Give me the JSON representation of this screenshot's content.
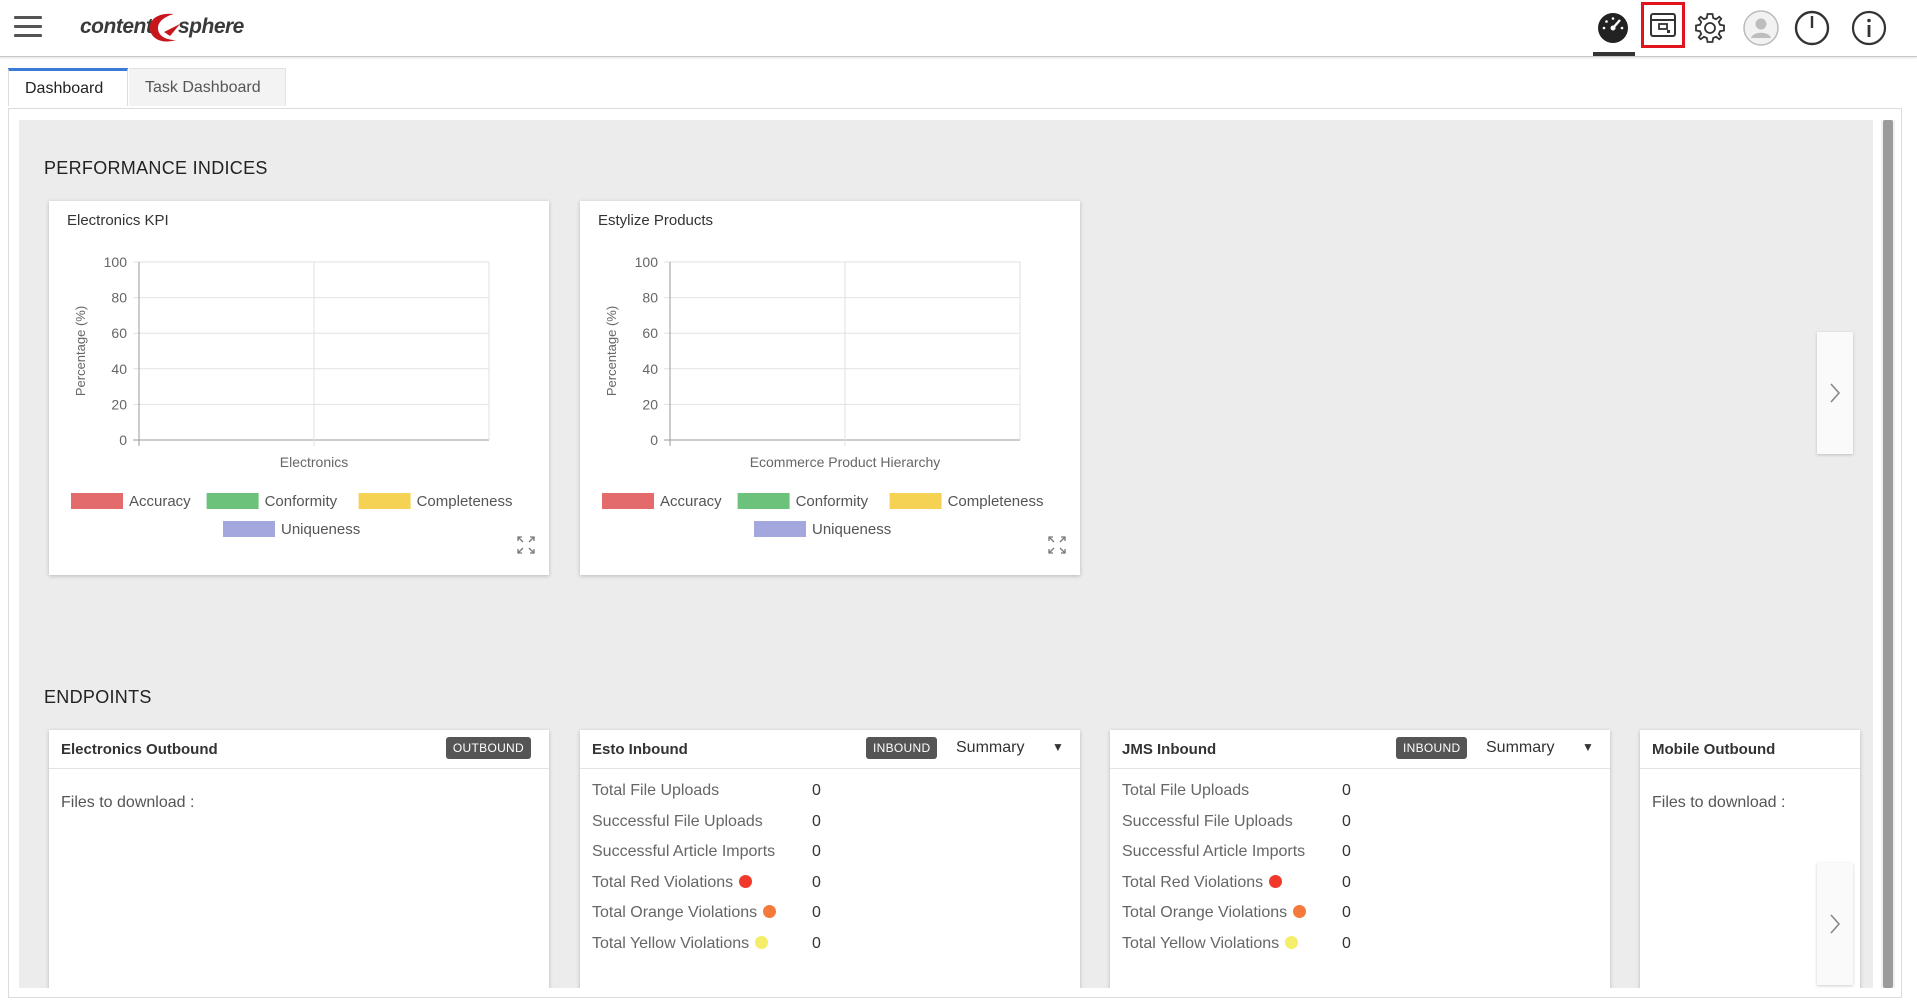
{
  "app": {
    "logo_left": "content",
    "logo_right": "sphere",
    "accent_color": "#3a7bd5",
    "highlight_color": "#e0131e"
  },
  "toolbar": {
    "icons": [
      "dashboard-gauge-icon",
      "archive-box-icon",
      "settings-gear-icon",
      "user-avatar-icon",
      "power-icon",
      "info-icon"
    ]
  },
  "tabs": [
    {
      "label": "Dashboard",
      "active": true
    },
    {
      "label": "Task Dashboard",
      "active": false
    }
  ],
  "sections": {
    "performance_title": "PERFORMANCE INDICES",
    "endpoints_title": "ENDPOINTS"
  },
  "chart_data": [
    {
      "type": "bar",
      "title": "Electronics KPI",
      "categories": [
        "Electronics"
      ],
      "ylabel": "Percentage (%)",
      "ylim": [
        0,
        100
      ],
      "yticks": [
        "100",
        "80",
        "60",
        "40",
        "20",
        "0"
      ],
      "series": [
        {
          "name": "Accuracy",
          "color": "#e36b6b",
          "values": [
            0
          ]
        },
        {
          "name": "Conformity",
          "color": "#6cc27a",
          "values": [
            0
          ]
        },
        {
          "name": "Completeness",
          "color": "#f5d253",
          "values": [
            0
          ]
        },
        {
          "name": "Uniqueness",
          "color": "#a4a7dd",
          "values": [
            0
          ]
        }
      ],
      "grid": true,
      "legend": "bottom"
    },
    {
      "type": "bar",
      "title": "Estylize Products",
      "categories": [
        "Ecommerce Product Hierarchy"
      ],
      "ylabel": "Percentage (%)",
      "ylim": [
        0,
        100
      ],
      "yticks": [
        "100",
        "80",
        "60",
        "40",
        "20",
        "0"
      ],
      "series": [
        {
          "name": "Accuracy",
          "color": "#e36b6b",
          "values": [
            0
          ]
        },
        {
          "name": "Conformity",
          "color": "#6cc27a",
          "values": [
            0
          ]
        },
        {
          "name": "Completeness",
          "color": "#f5d253",
          "values": [
            0
          ]
        },
        {
          "name": "Uniqueness",
          "color": "#a4a7dd",
          "values": [
            0
          ]
        }
      ],
      "grid": true,
      "legend": "bottom"
    }
  ],
  "endpoints": [
    {
      "name": "Electronics Outbound",
      "badge": "OUTBOUND",
      "files_label": "Files to download :"
    },
    {
      "name": "Esto Inbound",
      "badge": "INBOUND",
      "select_value": "Summary",
      "rows": [
        {
          "label": "Total File Uploads",
          "value": "0"
        },
        {
          "label": "Successful File Uploads",
          "value": "0"
        },
        {
          "label": "Successful Article Imports",
          "value": "0"
        },
        {
          "label": "Total Red Violations",
          "value": "0",
          "dot": "#f0392b"
        },
        {
          "label": "Total Orange Violations",
          "value": "0",
          "dot": "#f5793b"
        },
        {
          "label": "Total Yellow Violations",
          "value": "0",
          "dot": "#f5ee6a"
        }
      ]
    },
    {
      "name": "JMS Inbound",
      "badge": "INBOUND",
      "select_value": "Summary",
      "rows": [
        {
          "label": "Total File Uploads",
          "value": "0"
        },
        {
          "label": "Successful File Uploads",
          "value": "0"
        },
        {
          "label": "Successful Article Imports",
          "value": "0"
        },
        {
          "label": "Total Red Violations",
          "value": "0",
          "dot": "#f0392b"
        },
        {
          "label": "Total Orange Violations",
          "value": "0",
          "dot": "#f5793b"
        },
        {
          "label": "Total Yellow Violations",
          "value": "0",
          "dot": "#f5ee6a"
        }
      ]
    },
    {
      "name": "Mobile Outbound",
      "files_label": "Files to download :"
    }
  ]
}
